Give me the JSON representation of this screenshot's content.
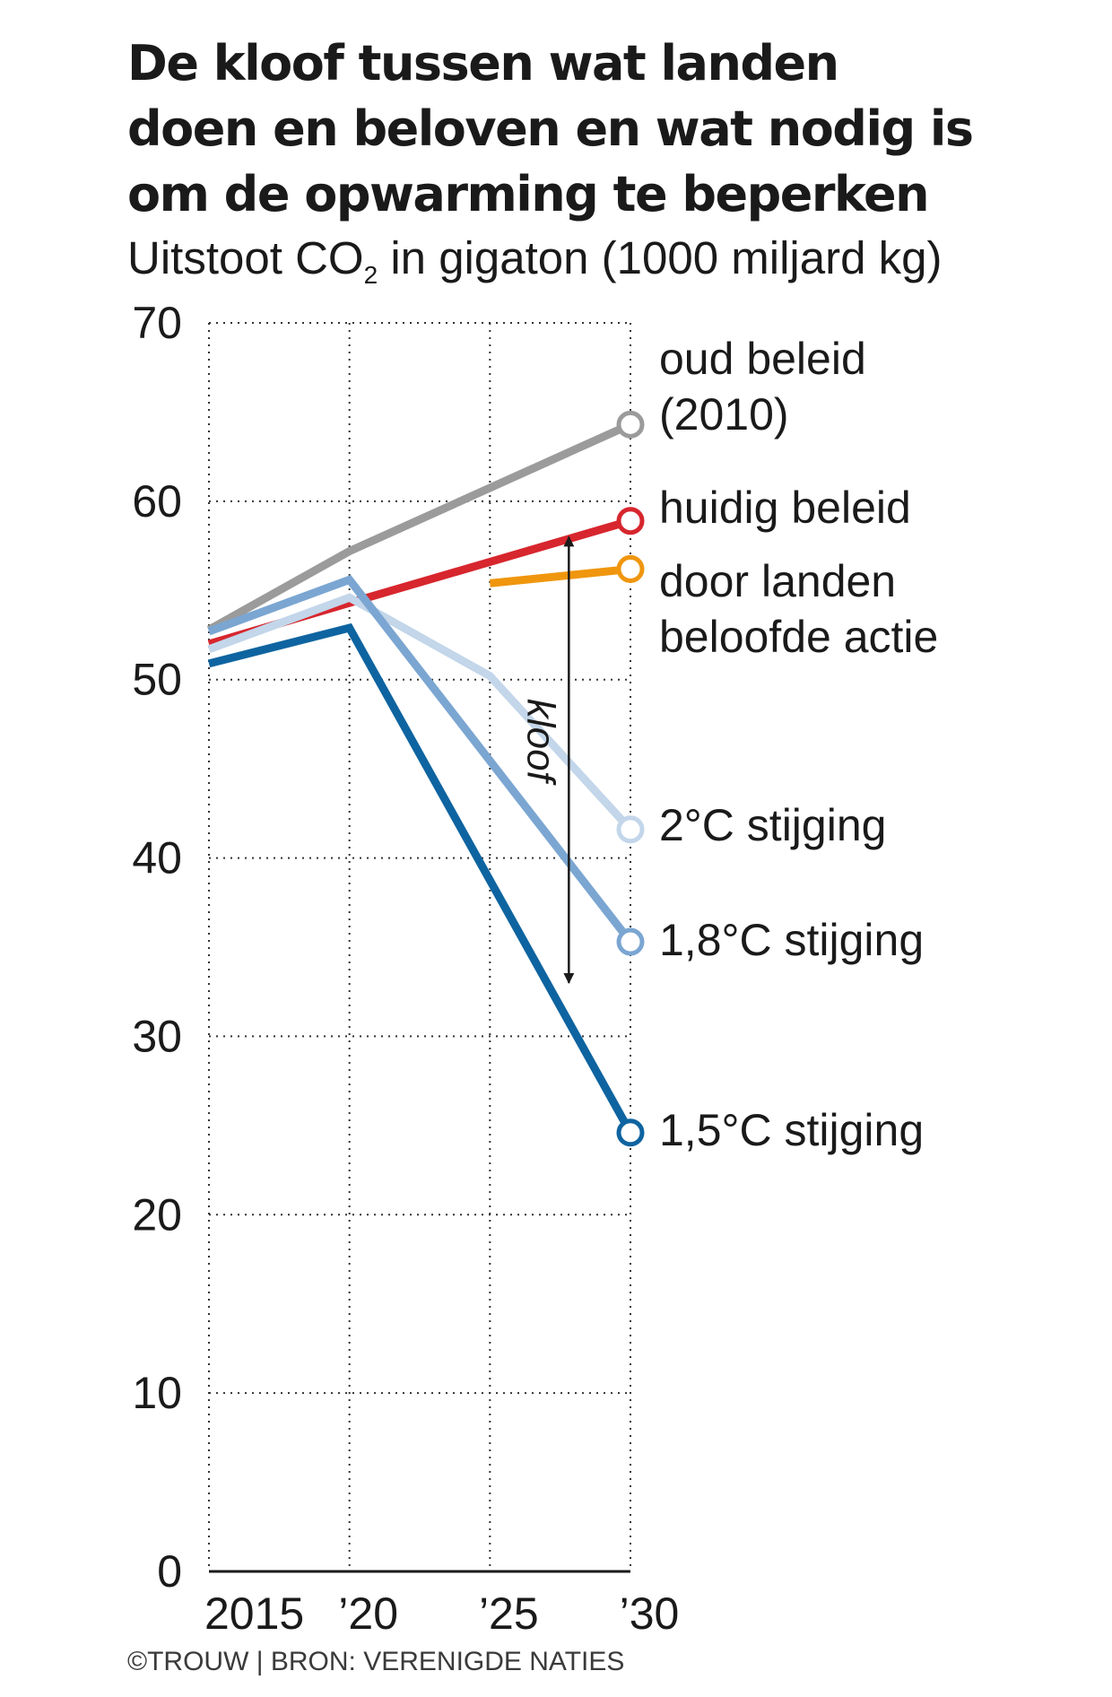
{
  "header": {
    "title_lines": [
      "De kloof tussen wat landen",
      "doen en beloven en wat nodig is",
      "om de opwarming te beperken"
    ],
    "subtitle_pre": "Uitstoot CO",
    "subtitle_sub": "2",
    "subtitle_post": " in gigaton (1000 miljard kg)"
  },
  "chart_data": {
    "type": "line",
    "ylim": [
      0,
      70
    ],
    "yticks": [
      0,
      10,
      20,
      30,
      40,
      50,
      60,
      70
    ],
    "xlim": [
      2015,
      2030
    ],
    "xticks": [
      2015,
      2020,
      2025,
      2030
    ],
    "xtick_labels": [
      "2015",
      "’20",
      "’25",
      "’30"
    ],
    "grid": true,
    "series": [
      {
        "name": "oud beleid (2010)",
        "label_lines": [
          "oud beleid",
          "(2010)"
        ],
        "color": "#9b9b9b",
        "points": [
          [
            2015,
            52.8
          ],
          [
            2020,
            57.2
          ],
          [
            2030,
            64.3
          ]
        ]
      },
      {
        "name": "huidig beleid",
        "label_lines": [
          "huidig beleid"
        ],
        "color": "#d7262e",
        "points": [
          [
            2015,
            52.0
          ],
          [
            2030,
            58.9
          ]
        ]
      },
      {
        "name": "door landen beloofde actie",
        "label_lines": [
          "door landen",
          "beloofde actie"
        ],
        "color": "#f0960e",
        "points": [
          [
            2025,
            55.4
          ],
          [
            2030,
            56.2
          ]
        ]
      },
      {
        "name": "2°C stijging",
        "label_lines": [
          "2°C stijging"
        ],
        "color": "#c3d6ea",
        "points": [
          [
            2015,
            51.7
          ],
          [
            2020,
            54.6
          ],
          [
            2025,
            50.2
          ],
          [
            2030,
            41.6
          ]
        ]
      },
      {
        "name": "1,8°C stijging",
        "label_lines": [
          "1,8°C stijging"
        ],
        "color": "#7ba6d2",
        "points": [
          [
            2015,
            52.7
          ],
          [
            2020,
            55.6
          ],
          [
            2030,
            35.3
          ]
        ]
      },
      {
        "name": "1,5°C stijging",
        "label_lines": [
          "1,5°C stijging"
        ],
        "color": "#0e64a0",
        "points": [
          [
            2015,
            50.9
          ],
          [
            2020,
            52.9
          ],
          [
            2030,
            24.6
          ]
        ]
      }
    ],
    "annotation": {
      "text": "kloof",
      "x": 2028,
      "from": 58.0,
      "to": 33.0
    }
  },
  "footer": {
    "credit": "©TROUW | BRON: VERENIGDE NATIES"
  }
}
